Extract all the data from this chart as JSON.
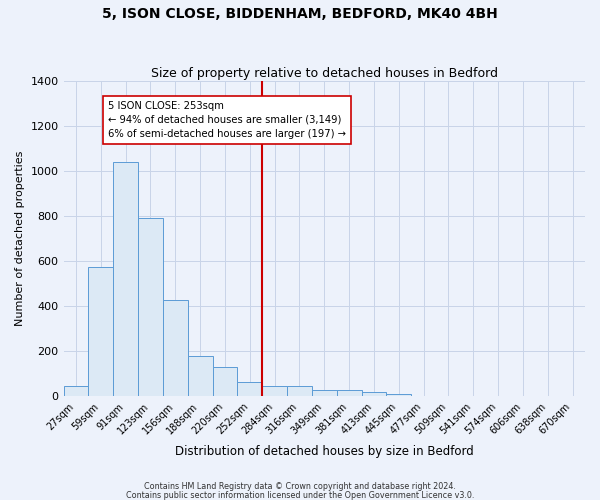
{
  "title": "5, ISON CLOSE, BIDDENHAM, BEDFORD, MK40 4BH",
  "subtitle": "Size of property relative to detached houses in Bedford",
  "xlabel": "Distribution of detached houses by size in Bedford",
  "ylabel": "Number of detached properties",
  "bar_labels": [
    "27sqm",
    "59sqm",
    "91sqm",
    "123sqm",
    "156sqm",
    "188sqm",
    "220sqm",
    "252sqm",
    "284sqm",
    "316sqm",
    "349sqm",
    "381sqm",
    "413sqm",
    "445sqm",
    "477sqm",
    "509sqm",
    "541sqm",
    "574sqm",
    "606sqm",
    "638sqm",
    "670sqm"
  ],
  "bar_values": [
    47,
    575,
    1040,
    790,
    425,
    180,
    130,
    65,
    45,
    45,
    30,
    27,
    20,
    12,
    0,
    0,
    0,
    0,
    0,
    0,
    0
  ],
  "bar_color": "#dce9f5",
  "bar_edge_color": "#5b9bd5",
  "grid_color": "#c8d4e8",
  "bg_color": "#edf2fb",
  "vline_x": 7.5,
  "vline_color": "#cc0000",
  "annotation_text": "5 ISON CLOSE: 253sqm\n← 94% of detached houses are smaller (3,149)\n6% of semi-detached houses are larger (197) →",
  "annotation_box_color": "#ffffff",
  "annotation_box_edge_color": "#cc0000",
  "ylim": [
    0,
    1400
  ],
  "yticks": [
    0,
    200,
    400,
    600,
    800,
    1000,
    1200,
    1400
  ],
  "footer_line1": "Contains HM Land Registry data © Crown copyright and database right 2024.",
  "footer_line2": "Contains public sector information licensed under the Open Government Licence v3.0."
}
